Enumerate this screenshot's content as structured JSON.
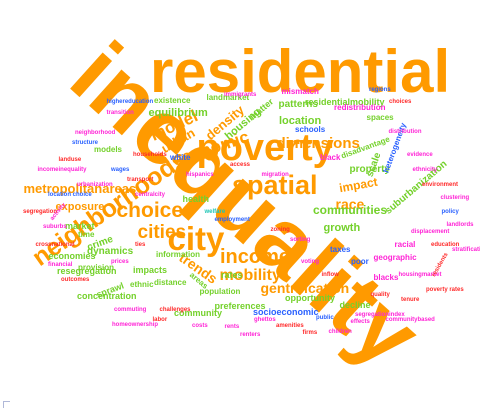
{
  "colors": {
    "orange": "#ff9a00",
    "green": "#74d12b",
    "blue": "#2a61ff",
    "magenta": "#ff24d6",
    "red": "#ff2a2a",
    "teal": "#1dc5b5"
  },
  "words": [
    {
      "text": "inequality",
      "color": "orange"
    },
    {
      "text": "residential",
      "color": "orange"
    },
    {
      "text": "poverty",
      "color": "orange"
    },
    {
      "text": "spatial",
      "color": "orange"
    },
    {
      "text": "city",
      "color": "orange"
    },
    {
      "text": "neighborhoods",
      "color": "orange"
    },
    {
      "text": "income",
      "color": "orange"
    },
    {
      "text": "choice",
      "color": "orange"
    },
    {
      "text": "cities",
      "color": "orange"
    },
    {
      "text": "economic",
      "color": "orange"
    },
    {
      "text": "model",
      "color": "orange"
    },
    {
      "text": "urban",
      "color": "orange"
    },
    {
      "text": "density",
      "color": "orange"
    },
    {
      "text": "metropolitanareas",
      "color": "orange"
    },
    {
      "text": "mobility",
      "color": "orange"
    },
    {
      "text": "gentrification",
      "color": "orange"
    },
    {
      "text": "dimensions",
      "color": "orange"
    },
    {
      "text": "trends",
      "color": "orange"
    },
    {
      "text": "race",
      "color": "orange"
    },
    {
      "text": "communities",
      "color": "green"
    },
    {
      "text": "impact",
      "color": "orange"
    },
    {
      "text": "exposure",
      "color": "orange"
    },
    {
      "text": "housing",
      "color": "green"
    },
    {
      "text": "equilibrium",
      "color": "green"
    },
    {
      "text": "dynamics",
      "color": "green"
    },
    {
      "text": "crime",
      "color": "green"
    },
    {
      "text": "location",
      "color": "green"
    },
    {
      "text": "scale",
      "color": "green"
    },
    {
      "text": "growth",
      "color": "green"
    },
    {
      "text": "suburbanization",
      "color": "green"
    },
    {
      "text": "property",
      "color": "green"
    },
    {
      "text": "market",
      "color": "green"
    },
    {
      "text": "health",
      "color": "green"
    },
    {
      "text": "economies",
      "color": "green"
    },
    {
      "text": "resegregation",
      "color": "green"
    },
    {
      "text": "rates",
      "color": "green"
    },
    {
      "text": "sprawl",
      "color": "green"
    },
    {
      "text": "concentration",
      "color": "green"
    },
    {
      "text": "ethnic",
      "color": "green"
    },
    {
      "text": "impacts",
      "color": "green"
    },
    {
      "text": "preferences",
      "color": "green"
    },
    {
      "text": "opportunity",
      "color": "green"
    },
    {
      "text": "community",
      "color": "green"
    },
    {
      "text": "decline",
      "color": "green"
    },
    {
      "text": "socioeconomic",
      "color": "blue"
    },
    {
      "text": "residentialmobility",
      "color": "green"
    },
    {
      "text": "patterns",
      "color": "green"
    },
    {
      "text": "matter",
      "color": "green"
    },
    {
      "text": "existence",
      "color": "green"
    },
    {
      "text": "landmarket",
      "color": "green"
    },
    {
      "text": "mismatch",
      "color": "magenta"
    },
    {
      "text": "redistribution",
      "color": "magenta"
    },
    {
      "text": "spaces",
      "color": "green"
    },
    {
      "text": "schools",
      "color": "blue"
    },
    {
      "text": "black",
      "color": "magenta"
    },
    {
      "text": "disadvantage",
      "color": "green"
    },
    {
      "text": "heterogeneity",
      "color": "blue"
    },
    {
      "text": "models",
      "color": "green"
    },
    {
      "text": "provision",
      "color": "green"
    },
    {
      "text": "information",
      "color": "green"
    },
    {
      "text": "distance",
      "color": "green"
    },
    {
      "text": "areas",
      "color": "green"
    },
    {
      "text": "white",
      "color": "blue"
    },
    {
      "text": "poor",
      "color": "blue"
    },
    {
      "text": "taxes",
      "color": "blue"
    },
    {
      "text": "geographic",
      "color": "magenta"
    },
    {
      "text": "racial",
      "color": "magenta"
    },
    {
      "text": "blacks",
      "color": "magenta"
    },
    {
      "text": "time",
      "color": "green"
    },
    {
      "text": "population",
      "color": "green"
    },
    {
      "text": "structure",
      "color": "blue"
    },
    {
      "text": "activity",
      "color": "magenta"
    },
    {
      "text": "neighborhood",
      "color": "magenta"
    },
    {
      "text": "segregation",
      "color": "red"
    },
    {
      "text": "suburbs",
      "color": "magenta"
    },
    {
      "text": "wages",
      "color": "blue"
    },
    {
      "text": "transport",
      "color": "red"
    },
    {
      "text": "households",
      "color": "red"
    },
    {
      "text": "welfare",
      "color": "teal"
    },
    {
      "text": "employment",
      "color": "blue"
    },
    {
      "text": "ghettos",
      "color": "magenta"
    },
    {
      "text": "amenities",
      "color": "red"
    },
    {
      "text": "public",
      "color": "blue"
    },
    {
      "text": "effects",
      "color": "magenta"
    },
    {
      "text": "quality",
      "color": "red"
    },
    {
      "text": "tenure",
      "color": "red"
    },
    {
      "text": "displacement",
      "color": "magenta"
    },
    {
      "text": "education",
      "color": "red"
    },
    {
      "text": "policy",
      "color": "blue"
    },
    {
      "text": "evidence",
      "color": "magenta"
    },
    {
      "text": "distribution",
      "color": "magenta"
    },
    {
      "text": "landuse",
      "color": "red"
    },
    {
      "text": "highereducation",
      "color": "blue"
    },
    {
      "text": "transition",
      "color": "magenta"
    },
    {
      "text": "immigrants",
      "color": "magenta"
    },
    {
      "text": "regions",
      "color": "blue"
    },
    {
      "text": "choices",
      "color": "red"
    },
    {
      "text": "incomeinequality",
      "color": "magenta"
    },
    {
      "text": "location choice",
      "color": "blue"
    },
    {
      "text": "urbanization",
      "color": "magenta"
    },
    {
      "text": "commuting",
      "color": "magenta"
    },
    {
      "text": "labor",
      "color": "red"
    },
    {
      "text": "costs",
      "color": "magenta"
    },
    {
      "text": "rents",
      "color": "magenta"
    },
    {
      "text": "firms",
      "color": "red"
    },
    {
      "text": "children",
      "color": "magenta"
    },
    {
      "text": "segregationindex",
      "color": "magenta"
    },
    {
      "text": "housingmarket",
      "color": "magenta"
    },
    {
      "text": "residents",
      "color": "red"
    },
    {
      "text": "landlords",
      "color": "magenta"
    },
    {
      "text": "environment",
      "color": "red"
    },
    {
      "text": "ethnicity",
      "color": "magenta"
    },
    {
      "text": "clustering",
      "color": "magenta"
    },
    {
      "text": "zoning",
      "color": "red"
    },
    {
      "text": "sorting",
      "color": "magenta"
    },
    {
      "text": "voting",
      "color": "magenta"
    },
    {
      "text": "inflow",
      "color": "red"
    },
    {
      "text": "migration",
      "color": "magenta"
    },
    {
      "text": "access",
      "color": "red"
    },
    {
      "text": "hispanics",
      "color": "magenta"
    },
    {
      "text": "centralcity",
      "color": "magenta"
    },
    {
      "text": "ties",
      "color": "red"
    },
    {
      "text": "prices",
      "color": "magenta"
    },
    {
      "text": "homeownership",
      "color": "magenta"
    },
    {
      "text": "challenges",
      "color": "red"
    },
    {
      "text": "renters",
      "color": "magenta"
    },
    {
      "text": "communitybased",
      "color": "magenta"
    },
    {
      "text": "poverty rates",
      "color": "red"
    },
    {
      "text": "stratification",
      "color": "magenta"
    },
    {
      "text": "crossnational",
      "color": "red"
    },
    {
      "text": "financial",
      "color": "magenta"
    },
    {
      "text": "outcomes",
      "color": "red"
    }
  ]
}
